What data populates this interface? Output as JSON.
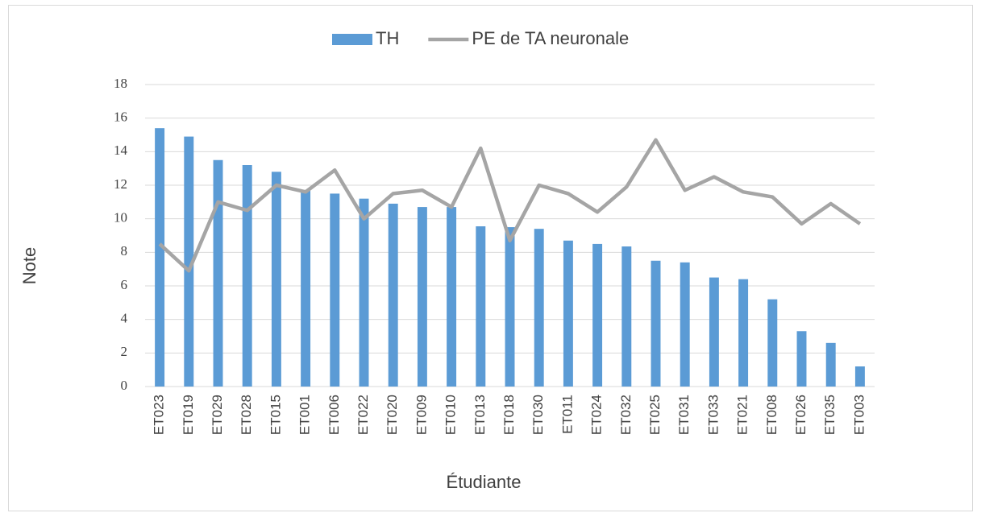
{
  "chart_data": {
    "type": "bar-line",
    "x_label": "Étudiante",
    "y_label": "Note",
    "categories": [
      "ET023",
      "ET019",
      "ET029",
      "ET028",
      "ET015",
      "ET001",
      "ET006",
      "ET022",
      "ET020",
      "ET009",
      "ET010",
      "ET013",
      "ET018",
      "ET030",
      "ET011",
      "ET024",
      "ET032",
      "ET025",
      "ET031",
      "ET033",
      "ET021",
      "ET008",
      "ET026",
      "ET035",
      "ET003"
    ],
    "series": [
      {
        "name": "TH",
        "type": "bar",
        "color": "#5b9bd5",
        "values": [
          15.4,
          14.9,
          13.5,
          13.2,
          12.8,
          11.7,
          11.5,
          11.2,
          10.9,
          10.7,
          10.7,
          9.55,
          9.5,
          9.4,
          8.7,
          8.5,
          8.35,
          7.5,
          7.4,
          6.5,
          6.4,
          5.2,
          3.3,
          2.6,
          1.2
        ]
      },
      {
        "name": "PE de TA neuronale",
        "type": "line",
        "color": "#a5a5a5",
        "values": [
          8.5,
          6.9,
          11.0,
          10.5,
          12.0,
          11.6,
          12.9,
          10.0,
          11.5,
          11.7,
          10.7,
          14.2,
          8.7,
          12.0,
          11.5,
          10.4,
          11.9,
          14.7,
          11.7,
          12.5,
          11.6,
          11.3,
          9.7,
          10.9,
          9.7
        ]
      }
    ],
    "ylim": [
      0,
      18
    ],
    "yticks": [
      0,
      2,
      4,
      6,
      8,
      10,
      12,
      14,
      16,
      18
    ],
    "grid": true,
    "legend": "top"
  }
}
